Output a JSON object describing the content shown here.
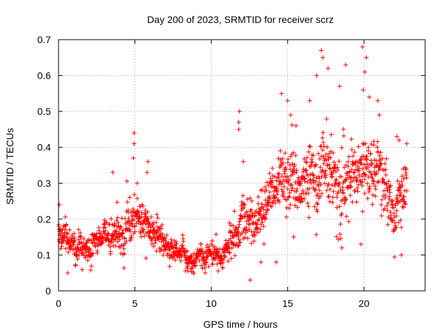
{
  "chart_data": {
    "type": "scatter",
    "title": "Day 200 of 2023, SRMTID for receiver scrz",
    "xlabel": "GPS time / hours",
    "ylabel": "SRMTID / TECUs",
    "xlim": [
      0,
      24
    ],
    "ylim": [
      0,
      0.7
    ],
    "xticks": [
      0,
      5,
      10,
      15,
      20
    ],
    "yticks": [
      0,
      0.1,
      0.2,
      0.3,
      0.4,
      0.5,
      0.6,
      0.7
    ],
    "grid": true,
    "marker": "+",
    "color": "#ff0000",
    "trend": [
      {
        "hour": 0.0,
        "level": 0.16,
        "spread": 0.035
      },
      {
        "hour": 1.0,
        "level": 0.13,
        "spread": 0.03
      },
      {
        "hour": 2.0,
        "level": 0.13,
        "spread": 0.03
      },
      {
        "hour": 3.0,
        "level": 0.15,
        "spread": 0.035
      },
      {
        "hour": 4.0,
        "level": 0.16,
        "spread": 0.04
      },
      {
        "hour": 5.0,
        "level": 0.19,
        "spread": 0.045
      },
      {
        "hour": 6.0,
        "level": 0.15,
        "spread": 0.04
      },
      {
        "hour": 7.0,
        "level": 0.12,
        "spread": 0.03
      },
      {
        "hour": 8.0,
        "level": 0.09,
        "spread": 0.025
      },
      {
        "hour": 9.0,
        "level": 0.085,
        "spread": 0.025
      },
      {
        "hour": 10.0,
        "level": 0.1,
        "spread": 0.025
      },
      {
        "hour": 11.0,
        "level": 0.11,
        "spread": 0.03
      },
      {
        "hour": 12.0,
        "level": 0.19,
        "spread": 0.05
      },
      {
        "hour": 13.0,
        "level": 0.21,
        "spread": 0.05
      },
      {
        "hour": 14.0,
        "level": 0.26,
        "spread": 0.06
      },
      {
        "hour": 15.0,
        "level": 0.3,
        "spread": 0.07
      },
      {
        "hour": 16.0,
        "level": 0.28,
        "spread": 0.07
      },
      {
        "hour": 17.0,
        "level": 0.33,
        "spread": 0.08
      },
      {
        "hour": 18.0,
        "level": 0.31,
        "spread": 0.08
      },
      {
        "hour": 19.0,
        "level": 0.3,
        "spread": 0.07
      },
      {
        "hour": 20.0,
        "level": 0.34,
        "spread": 0.08
      },
      {
        "hour": 21.0,
        "level": 0.3,
        "spread": 0.07
      },
      {
        "hour": 22.0,
        "level": 0.22,
        "spread": 0.06
      },
      {
        "hour": 22.8,
        "level": 0.3,
        "spread": 0.05
      }
    ],
    "peaks": [
      {
        "x": 0.05,
        "y": 0.24
      },
      {
        "x": 3.55,
        "y": 0.33
      },
      {
        "x": 4.95,
        "y": 0.44
      },
      {
        "x": 4.95,
        "y": 0.41
      },
      {
        "x": 4.9,
        "y": 0.37
      },
      {
        "x": 5.15,
        "y": 0.3
      },
      {
        "x": 5.85,
        "y": 0.36
      },
      {
        "x": 5.8,
        "y": 0.33
      },
      {
        "x": 11.85,
        "y": 0.5
      },
      {
        "x": 11.8,
        "y": 0.47
      },
      {
        "x": 11.8,
        "y": 0.45
      },
      {
        "x": 12.1,
        "y": 0.36
      },
      {
        "x": 12.55,
        "y": 0.03
      },
      {
        "x": 14.6,
        "y": 0.55
      },
      {
        "x": 15.0,
        "y": 0.53
      },
      {
        "x": 15.2,
        "y": 0.49
      },
      {
        "x": 15.55,
        "y": 0.46
      },
      {
        "x": 16.45,
        "y": 0.53
      },
      {
        "x": 16.9,
        "y": 0.6
      },
      {
        "x": 17.2,
        "y": 0.67
      },
      {
        "x": 17.3,
        "y": 0.65
      },
      {
        "x": 17.65,
        "y": 0.62
      },
      {
        "x": 18.4,
        "y": 0.57
      },
      {
        "x": 18.8,
        "y": 0.63
      },
      {
        "x": 19.9,
        "y": 0.68
      },
      {
        "x": 20.15,
        "y": 0.65
      },
      {
        "x": 20.05,
        "y": 0.61
      },
      {
        "x": 19.95,
        "y": 0.56
      },
      {
        "x": 20.35,
        "y": 0.54
      },
      {
        "x": 20.9,
        "y": 0.53
      },
      {
        "x": 21.0,
        "y": 0.49
      },
      {
        "x": 22.15,
        "y": 0.43
      },
      {
        "x": 22.3,
        "y": 0.42
      },
      {
        "x": 22.45,
        "y": 0.1
      },
      {
        "x": 22.8,
        "y": 0.41
      },
      {
        "x": 18.55,
        "y": 0.12
      },
      {
        "x": 19.8,
        "y": 0.13
      },
      {
        "x": 13.25,
        "y": 0.08
      },
      {
        "x": 0.6,
        "y": 0.05
      },
      {
        "x": 1.1,
        "y": 0.07
      },
      {
        "x": 14.25,
        "y": 0.08
      },
      {
        "x": 15.4,
        "y": 0.15
      }
    ]
  }
}
